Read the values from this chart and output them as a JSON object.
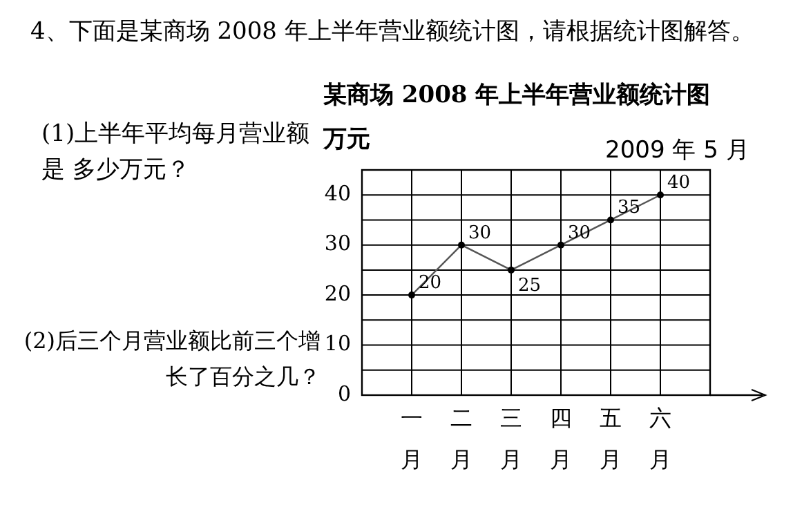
{
  "chart_data": {
    "type": "line",
    "title": "某商场 2008 年上半年营业额统计图",
    "ylabel": "万元",
    "categories": [
      "一月",
      "二月",
      "三月",
      "四月",
      "五月",
      "六月"
    ],
    "series": [
      {
        "color": "#555555",
        "values": [
          20,
          30,
          25,
          30,
          35,
          40
        ]
      }
    ],
    "ylim": [
      0,
      45
    ],
    "yticks": [
      0,
      {
        "value": 5,
        "label": null
      },
      10,
      {
        "value": 15,
        "label": null
      },
      20,
      {
        "value": 25,
        "label": null
      },
      30,
      {
        "value": 35,
        "label": null
      },
      40,
      {
        "value": 45,
        "label": null
      }
    ],
    "grid": true,
    "marker": "circle",
    "data_labels": true,
    "annotations": [
      "4、下面是某商场 2008 年上半年营业额统计图，请根据统计图解答。",
      "(1)上半年平均每月营业额是 多少万元？",
      "(2)后三个月营业额比前三个增长了百分之几？",
      "2009 年 5 月"
    ]
  }
}
